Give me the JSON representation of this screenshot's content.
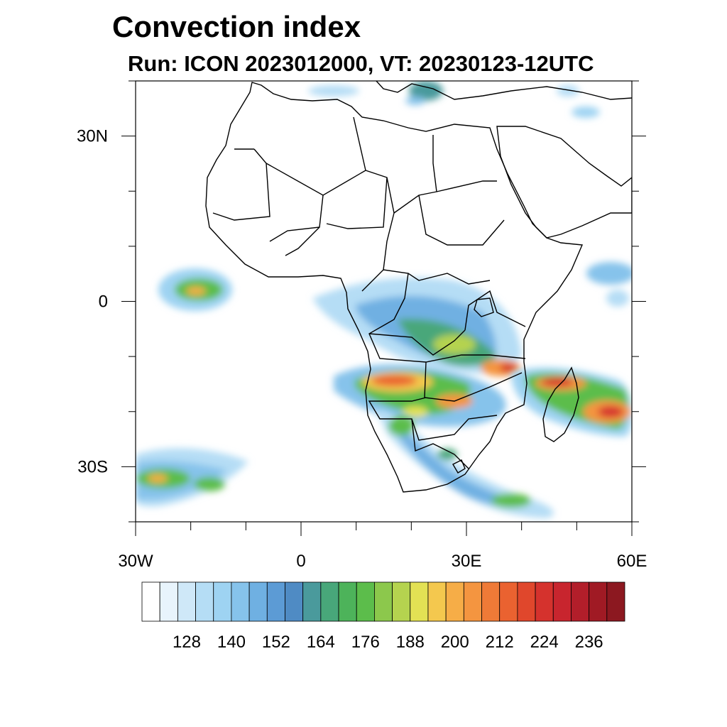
{
  "title": "Convection index",
  "subtitle": "Run: ICON 2023012000,  VT: 20230123-12UTC",
  "axes": {
    "lon_range": [
      -30,
      60
    ],
    "lat_range": [
      -40,
      40
    ],
    "x_ticks": [
      {
        "lon": -30,
        "label": "30W"
      },
      {
        "lon": 0,
        "label": "0"
      },
      {
        "lon": 30,
        "label": "30E"
      },
      {
        "lon": 60,
        "label": "60E"
      }
    ],
    "y_ticks": [
      {
        "lat": 30,
        "label": "30N"
      },
      {
        "lat": 0,
        "label": "0"
      },
      {
        "lat": -30,
        "label": "30S"
      }
    ]
  },
  "colorbar": {
    "colors": [
      "#ffffff",
      "#e8f4fc",
      "#cfe8f8",
      "#b5ddf5",
      "#9ed3f2",
      "#86c3eb",
      "#6fb0e2",
      "#5c9bd5",
      "#4f8bc4",
      "#4a9a9c",
      "#48a77a",
      "#4db35a",
      "#5cbd4b",
      "#8cc84c",
      "#b5d34f",
      "#e3e154",
      "#f4c84e",
      "#f6ad47",
      "#f49540",
      "#ef7a37",
      "#ea6230",
      "#e0472c",
      "#d5322d",
      "#c8252e",
      "#b21e2a",
      "#a01a24",
      "#8c1820"
    ],
    "tick_labels": [
      "128",
      "140",
      "152",
      "164",
      "176",
      "188",
      "200",
      "212",
      "224",
      "236"
    ]
  }
}
